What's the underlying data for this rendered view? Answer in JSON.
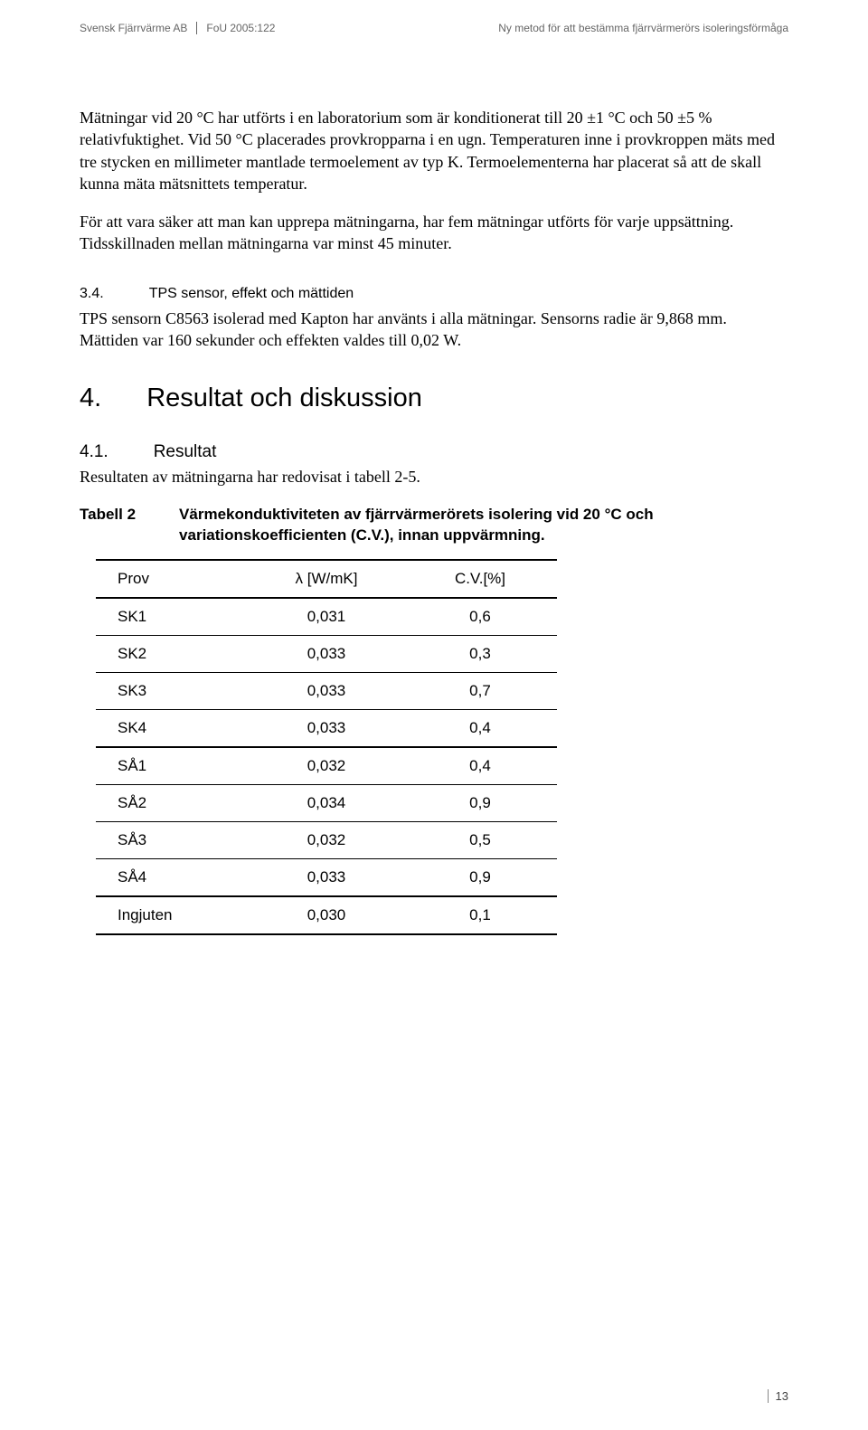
{
  "header": {
    "left_org": "Svensk Fjärrvärme AB",
    "left_ref": "FoU 2005:122",
    "right": "Ny metod för att bestämma fjärrvärmerörs isoleringsförmåga"
  },
  "paragraphs": {
    "p1": "Mätningar vid 20 °C har utförts i en laboratorium som är konditionerat till 20 ±1 °C och 50 ±5 % relativfuktighet. Vid 50 °C placerades provkropparna i en ugn. Temperaturen inne i provkroppen mäts med tre stycken en millimeter mantlade termoelement av typ K. Termoelementerna har placerat så att de skall kunna mäta mätsnittets temperatur.",
    "p2": "För att vara säker att man kan upprepa mätningarna, har fem mätningar utförts för varje uppsättning. Tidsskillnaden mellan mätningarna var minst 45 minuter."
  },
  "section34": {
    "num": "3.4.",
    "title": "TPS sensor, effekt och mättiden",
    "body": "TPS sensorn C8563 isolerad med Kapton har använts i alla mätningar. Sensorns radie är 9,868 mm. Mättiden var 160 sekunder och effekten valdes till 0,02 W."
  },
  "section4": {
    "num": "4.",
    "title": "Resultat och diskussion"
  },
  "section41": {
    "num": "4.1.",
    "title": "Resultat",
    "body": "Resultaten av mätningarna har redovisat i tabell 2-5."
  },
  "table": {
    "label": "Tabell 2",
    "caption": "Värmekonduktiviteten av fjärrvärmerörets isolering vid 20 °C och variationskoefficienten (C.V.), innan uppvärmning.",
    "columns": [
      "Prov",
      "λ [W/mK]",
      "C.V.[%]"
    ],
    "rows": [
      [
        "SK1",
        "0,031",
        "0,6"
      ],
      [
        "SK2",
        "0,033",
        "0,3"
      ],
      [
        "SK3",
        "0,033",
        "0,7"
      ],
      [
        "SK4",
        "0,033",
        "0,4"
      ],
      [
        "SÅ1",
        "0,032",
        "0,4"
      ],
      [
        "SÅ2",
        "0,034",
        "0,9"
      ],
      [
        "SÅ3",
        "0,032",
        "0,5"
      ],
      [
        "SÅ4",
        "0,033",
        "0,9"
      ],
      [
        "Ingjuten",
        "0,030",
        "0,1"
      ]
    ],
    "group_breaks": [
      4,
      8
    ]
  },
  "page_number": "13"
}
